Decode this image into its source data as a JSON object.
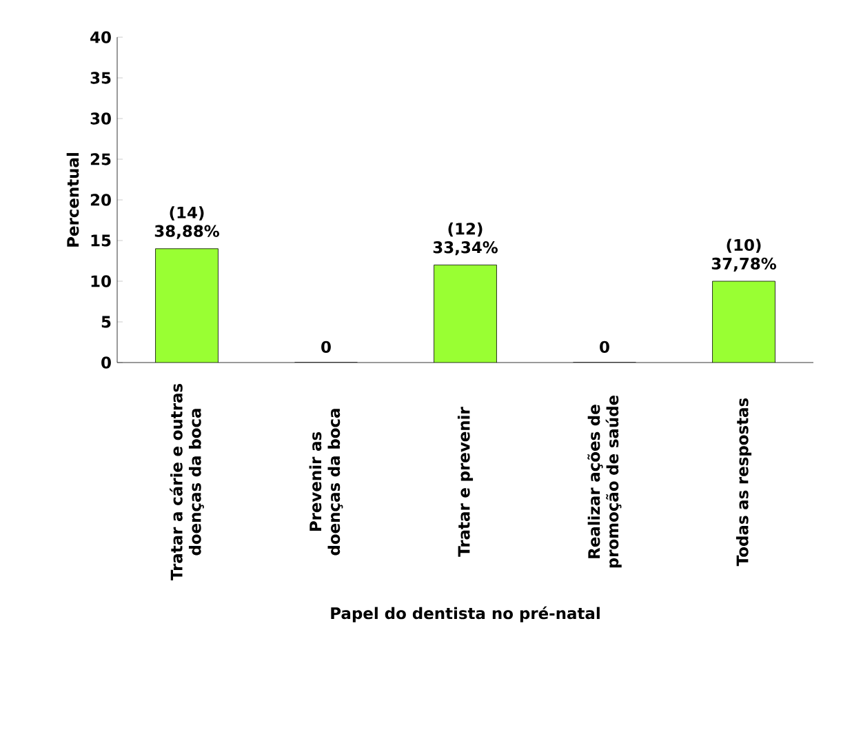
{
  "chart_data": {
    "type": "bar",
    "xlabel": "Papel do dentista no pré-natal",
    "ylabel": "Percentual",
    "categories": [
      "Tratar a cárie e outras doenças da boca",
      "Prevenir as doenças da boca",
      "Tratar e prevenir",
      "Realizar ações de promoção de saúde",
      "Todas as respostas"
    ],
    "values": [
      14,
      0,
      12,
      0,
      10
    ],
    "value_labels": [
      "(14) 38,88%",
      "0",
      "(12) 33,34%",
      "0",
      "(10) 37,78%"
    ],
    "color": "#99ff33",
    "ylim": [
      0,
      40
    ],
    "yticks": [
      0,
      5,
      10,
      15,
      20,
      25,
      30,
      35,
      40
    ],
    "grid": false
  }
}
